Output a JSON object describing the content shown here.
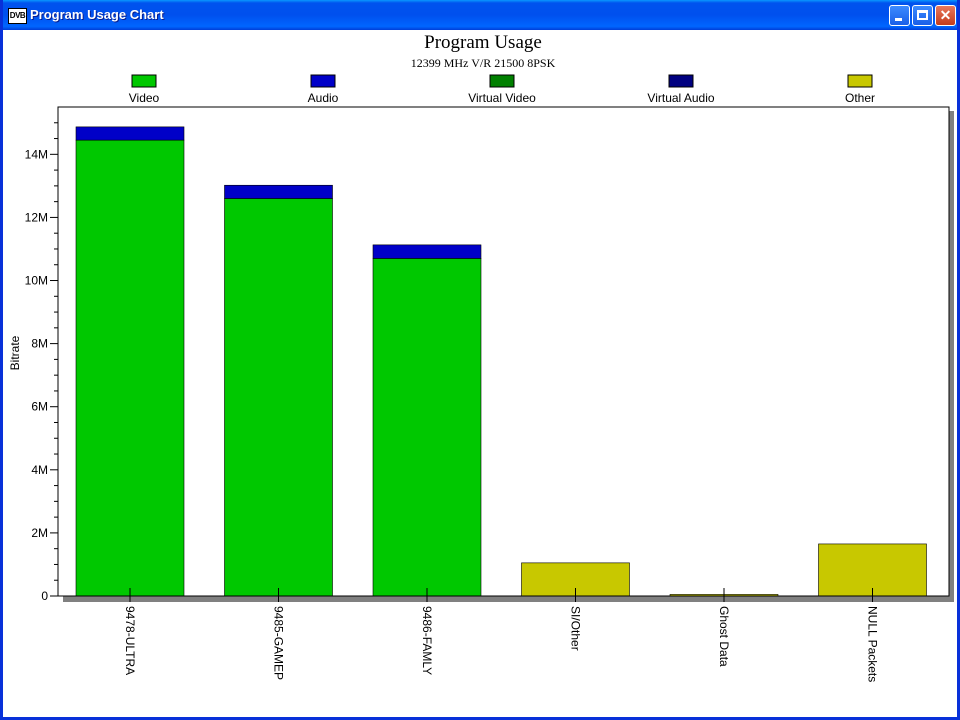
{
  "window": {
    "title": "Program Usage Chart",
    "app_icon_text": "DVB"
  },
  "colors": {
    "video": "#00c800",
    "audio": "#0000c8",
    "virtual_video": "#008000",
    "virtual_audio": "#000080",
    "other": "#c8c800"
  },
  "chart_data": {
    "type": "bar",
    "stacked": true,
    "title": "Program Usage",
    "subtitle": "12399 MHz V/R 21500 8PSK",
    "xlabel": "",
    "ylabel": "Bitrate",
    "ylim": [
      0,
      15500000
    ],
    "yticks": [
      0,
      2000000,
      4000000,
      6000000,
      8000000,
      10000000,
      12000000,
      14000000
    ],
    "ytick_labels": [
      "0",
      "2M",
      "4M",
      "6M",
      "8M",
      "10M",
      "12M",
      "14M"
    ],
    "legend_position": "top",
    "categories": [
      "9478-ULTRA",
      "9485-GAMEP",
      "9486-FAMLY",
      "SI/Other",
      "Ghost Data",
      "NULL Packets"
    ],
    "series": [
      {
        "name": "Video",
        "color": "#00c800",
        "values": [
          14450000,
          12600000,
          10700000,
          0,
          0,
          0
        ]
      },
      {
        "name": "Audio",
        "color": "#0000c8",
        "values": [
          420000,
          420000,
          430000,
          0,
          0,
          0
        ]
      },
      {
        "name": "Virtual Video",
        "color": "#008000",
        "values": [
          0,
          0,
          0,
          0,
          0,
          0
        ]
      },
      {
        "name": "Virtual Audio",
        "color": "#000080",
        "values": [
          0,
          0,
          0,
          0,
          0,
          0
        ]
      },
      {
        "name": "Other",
        "color": "#c8c800",
        "values": [
          0,
          0,
          0,
          1050000,
          50000,
          1650000
        ]
      }
    ]
  }
}
